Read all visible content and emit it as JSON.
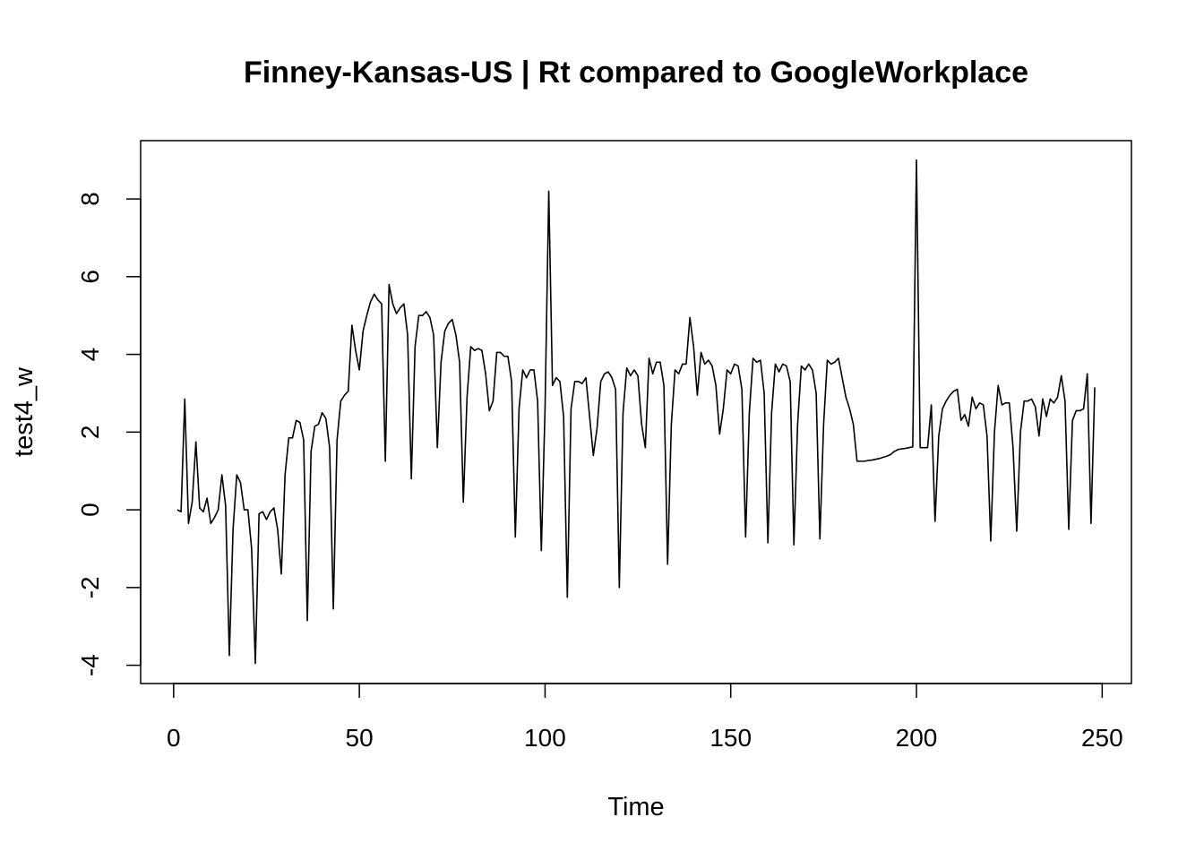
{
  "chart_data": {
    "type": "line",
    "title": "Finney-Kansas-US | Rt compared to GoogleWorkplace",
    "x_label": "Time",
    "y_label": "test4_w",
    "color": "#000000",
    "x": [
      1,
      2,
      3,
      4,
      5,
      6,
      7,
      8,
      9,
      10,
      11,
      12,
      13,
      14,
      15,
      16,
      17,
      18,
      19,
      20,
      21,
      22,
      23,
      24,
      25,
      26,
      27,
      28,
      29,
      30,
      31,
      32,
      33,
      34,
      35,
      36,
      37,
      38,
      39,
      40,
      41,
      42,
      43,
      44,
      45,
      46,
      47,
      48,
      49,
      50,
      51,
      52,
      53,
      54,
      55,
      56,
      57,
      58,
      59,
      60,
      61,
      62,
      63,
      64,
      65,
      66,
      67,
      68,
      69,
      70,
      71,
      72,
      73,
      74,
      75,
      76,
      77,
      78,
      79,
      80,
      81,
      82,
      83,
      84,
      85,
      86,
      87,
      88,
      89,
      90,
      91,
      92,
      93,
      94,
      95,
      96,
      97,
      98,
      99,
      100,
      101,
      102,
      103,
      104,
      105,
      106,
      107,
      108,
      109,
      110,
      111,
      112,
      113,
      114,
      115,
      116,
      117,
      118,
      119,
      120,
      121,
      122,
      123,
      124,
      125,
      126,
      127,
      128,
      129,
      130,
      131,
      132,
      133,
      134,
      135,
      136,
      137,
      138,
      139,
      140,
      141,
      142,
      143,
      144,
      145,
      146,
      147,
      148,
      149,
      150,
      151,
      152,
      153,
      154,
      155,
      156,
      157,
      158,
      159,
      160,
      161,
      162,
      163,
      164,
      165,
      166,
      167,
      168,
      169,
      170,
      171,
      172,
      173,
      174,
      175,
      176,
      177,
      178,
      179,
      180,
      181,
      182,
      183,
      184,
      185,
      186,
      187,
      188,
      189,
      190,
      191,
      192,
      193,
      194,
      195,
      196,
      197,
      198,
      199,
      200,
      201,
      202,
      203,
      204,
      205,
      206,
      207,
      208,
      209,
      210,
      211,
      212,
      213,
      214,
      215,
      216,
      217,
      218,
      219,
      220,
      221,
      222,
      223,
      224,
      225,
      226,
      227,
      228,
      229,
      230,
      231,
      232,
      233,
      234,
      235,
      236,
      237,
      238,
      239,
      240,
      241,
      242,
      243,
      244,
      245,
      246,
      247,
      248
    ],
    "values": [
      0,
      -0.05,
      2.85,
      -0.35,
      0.2,
      1.75,
      0.05,
      -0.05,
      0.3,
      -0.35,
      -0.2,
      0,
      0.9,
      0.1,
      -3.75,
      -0.5,
      0.9,
      0.7,
      0,
      0,
      -1,
      -3.95,
      -0.1,
      -0.05,
      -0.25,
      -0.05,
      0.05,
      -0.5,
      -1.65,
      0.9,
      1.85,
      1.85,
      2.3,
      2.25,
      1.8,
      -2.85,
      1.5,
      2.15,
      2.2,
      2.5,
      2.35,
      1.6,
      -2.55,
      1.8,
      2.8,
      2.95,
      3.05,
      4.75,
      4.1,
      3.6,
      4.6,
      5.0,
      5.35,
      5.55,
      5.4,
      5.3,
      1.25,
      5.8,
      5.3,
      5.05,
      5.2,
      5.3,
      4.5,
      0.8,
      4.2,
      5.0,
      5.0,
      5.1,
      4.95,
      4.5,
      1.6,
      3.8,
      4.6,
      4.8,
      4.9,
      4.5,
      3.8,
      0.2,
      2.9,
      4.2,
      4.1,
      4.15,
      4.1,
      3.5,
      2.55,
      2.8,
      4.05,
      4.05,
      3.95,
      3.95,
      3.3,
      -0.7,
      2.6,
      3.6,
      3.4,
      3.6,
      3.6,
      2.8,
      -1.05,
      2.6,
      8.2,
      3.2,
      3.4,
      3.3,
      2.4,
      -2.25,
      2.6,
      3.3,
      3.3,
      3.25,
      3.4,
      2.4,
      1.4,
      2.1,
      3.3,
      3.5,
      3.55,
      3.4,
      3.1,
      -2.0,
      2.5,
      3.65,
      3.45,
      3.6,
      3.45,
      2.2,
      1.6,
      3.9,
      3.5,
      3.8,
      3.8,
      3.2,
      -1.4,
      2.2,
      3.6,
      3.5,
      3.75,
      3.75,
      4.95,
      4.2,
      2.95,
      4.05,
      3.75,
      3.85,
      3.7,
      3.2,
      1.95,
      2.6,
      3.6,
      3.5,
      3.75,
      3.7,
      3.1,
      -0.7,
      2.5,
      3.9,
      3.8,
      3.85,
      3.0,
      -0.85,
      2.5,
      3.75,
      3.55,
      3.75,
      3.7,
      3.3,
      -0.9,
      2.2,
      3.7,
      3.6,
      3.75,
      3.6,
      3.0,
      -0.75,
      2.2,
      3.85,
      3.75,
      3.8,
      3.9,
      3.4,
      2.9,
      2.6,
      2.2,
      1.25,
      1.25,
      1.25,
      1.27,
      1.28,
      1.3,
      1.32,
      1.35,
      1.38,
      1.42,
      1.5,
      1.55,
      1.57,
      1.58,
      1.6,
      1.62,
      9.0,
      1.6,
      1.6,
      1.6,
      2.7,
      -0.3,
      1.9,
      2.6,
      2.8,
      2.95,
      3.05,
      3.1,
      2.3,
      2.45,
      2.15,
      2.9,
      2.6,
      2.75,
      2.7,
      1.9,
      -0.8,
      2.0,
      3.2,
      2.7,
      2.75,
      2.75,
      1.6,
      -0.55,
      2.0,
      2.8,
      2.8,
      2.85,
      2.65,
      1.9,
      2.85,
      2.4,
      2.85,
      2.75,
      2.9,
      3.45,
      2.8,
      -0.5,
      2.3,
      2.55,
      2.55,
      2.6,
      3.5,
      -0.35,
      3.15
    ],
    "xlim": [
      -8.88,
      257.88
    ],
    "ylim": [
      -4.47,
      9.5
    ],
    "xticks": [
      0,
      50,
      100,
      150,
      200,
      250
    ],
    "yticks": [
      -4,
      -2,
      0,
      2,
      4,
      6,
      8
    ]
  }
}
